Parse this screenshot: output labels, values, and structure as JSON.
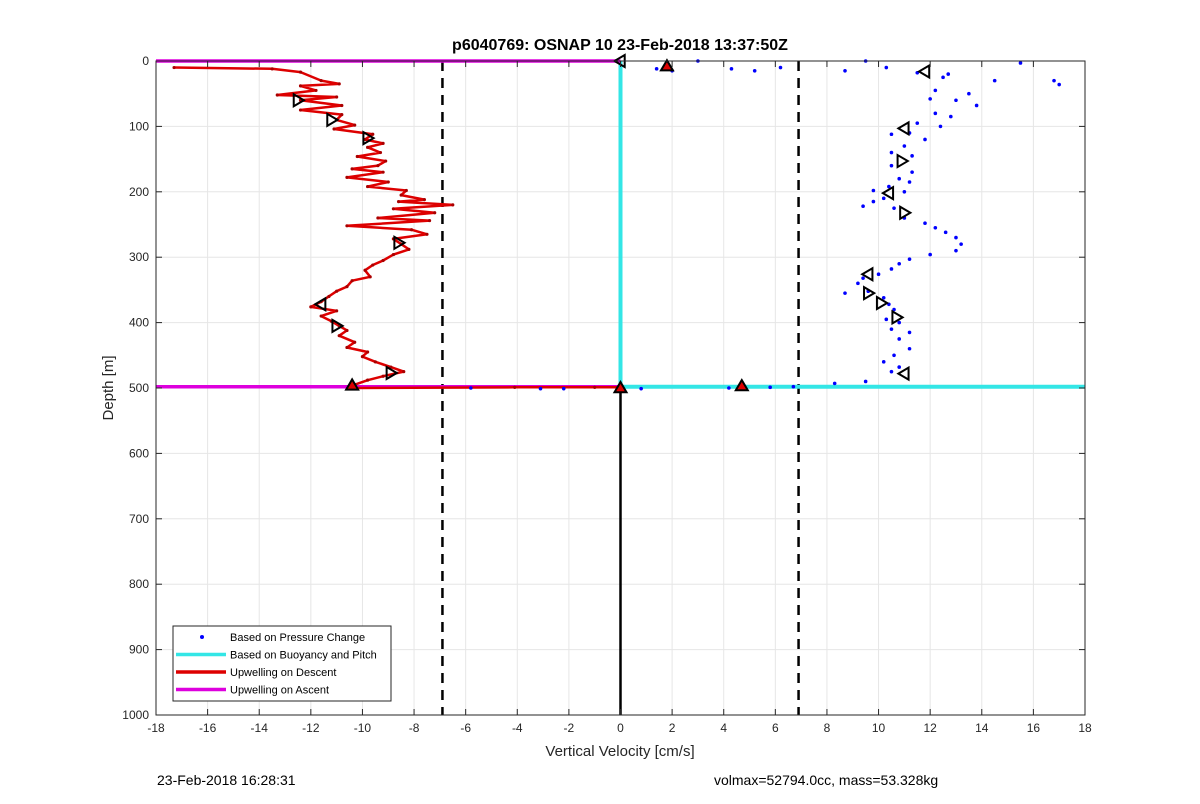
{
  "chart_data": {
    "type": "scatter",
    "title": "p6040769: OSNAP 10 23-Feb-2018 13:37:50Z",
    "xlabel": "Vertical Velocity [cm/s]",
    "ylabel": "Depth [m]",
    "xlim": [
      -18,
      18
    ],
    "ylim": [
      0,
      1000
    ],
    "y_reversed": true,
    "grid": true,
    "xticks": [
      -18,
      -16,
      -14,
      -12,
      -10,
      -8,
      -6,
      -4,
      -2,
      0,
      2,
      4,
      6,
      8,
      10,
      12,
      14,
      16,
      18
    ],
    "yticks": [
      0,
      100,
      200,
      300,
      400,
      500,
      600,
      700,
      800,
      900,
      1000
    ],
    "legend": {
      "position": "bottom-left",
      "entries": [
        {
          "label": "Based on Pressure Change",
          "color": "#0000ff",
          "style": "dot"
        },
        {
          "label": "Based on Buoyancy and Pitch",
          "color": "#33e6e6",
          "style": "line"
        },
        {
          "label": "Upwelling on Descent",
          "color": "#dd0000",
          "style": "line"
        },
        {
          "label": "Upwelling on Ascent",
          "color": "#dd00dd",
          "style": "line"
        }
      ]
    },
    "thresholds": {
      "dashed_x": [
        -6.9,
        6.9
      ]
    },
    "series": [
      {
        "name": "Upwelling on Descent",
        "color": "#dd0000",
        "points": [
          [
            -17.3,
            10
          ],
          [
            -13.5,
            12
          ],
          [
            -12.4,
            17
          ],
          [
            -11.6,
            30
          ],
          [
            -10.9,
            35
          ],
          [
            -12.4,
            38
          ],
          [
            -11.8,
            45
          ],
          [
            -13.3,
            52
          ],
          [
            -11,
            55
          ],
          [
            -12.4,
            60
          ],
          [
            -10.8,
            68
          ],
          [
            -12.4,
            75
          ],
          [
            -10.8,
            82
          ],
          [
            -11,
            90
          ],
          [
            -10.3,
            98
          ],
          [
            -11.1,
            104
          ],
          [
            -9.6,
            112
          ],
          [
            -9.9,
            120
          ],
          [
            -9.2,
            126
          ],
          [
            -9.8,
            132
          ],
          [
            -9.3,
            140
          ],
          [
            -10.2,
            146
          ],
          [
            -9.1,
            153
          ],
          [
            -9.4,
            160
          ],
          [
            -10.4,
            165
          ],
          [
            -9.2,
            170
          ],
          [
            -10.6,
            178
          ],
          [
            -9,
            185
          ],
          [
            -9.8,
            192
          ],
          [
            -8.3,
            198
          ],
          [
            -8.5,
            205
          ],
          [
            -7.6,
            212
          ],
          [
            -8.6,
            215
          ],
          [
            -6.5,
            220
          ],
          [
            -8.8,
            226
          ],
          [
            -7.2,
            232
          ],
          [
            -9.4,
            240
          ],
          [
            -7.4,
            244
          ],
          [
            -10.6,
            252
          ],
          [
            -8.1,
            258
          ],
          [
            -7.5,
            265
          ],
          [
            -8.8,
            272
          ],
          [
            -8.5,
            280
          ],
          [
            -8.2,
            288
          ],
          [
            -8.8,
            296
          ],
          [
            -9.2,
            305
          ],
          [
            -9.6,
            312
          ],
          [
            -9.9,
            320
          ],
          [
            -9.7,
            330
          ],
          [
            -10.4,
            336
          ],
          [
            -10.6,
            345
          ],
          [
            -11,
            352
          ],
          [
            -11.3,
            360
          ],
          [
            -11.6,
            368
          ],
          [
            -12,
            376
          ],
          [
            -11,
            382
          ],
          [
            -11.6,
            390
          ],
          [
            -11.2,
            398
          ],
          [
            -10.9,
            405
          ],
          [
            -10.6,
            412
          ],
          [
            -10.9,
            420
          ],
          [
            -10.3,
            430
          ],
          [
            -10.6,
            438
          ],
          [
            -9.8,
            445
          ],
          [
            -10,
            452
          ],
          [
            -9.5,
            460
          ],
          [
            -8.9,
            468
          ],
          [
            -8.4,
            475
          ],
          [
            -9.2,
            482
          ],
          [
            -9.8,
            488
          ],
          [
            -10.3,
            495
          ],
          [
            -10.3,
            500
          ],
          [
            -4.1,
            499
          ],
          [
            -1,
            499
          ],
          [
            0,
            499
          ]
        ],
        "markers": [
          [
            -12.5,
            60,
            "right"
          ],
          [
            -11.2,
            90,
            "right"
          ],
          [
            -9.8,
            118,
            "right"
          ],
          [
            -8.6,
            278,
            "right"
          ],
          [
            -11.6,
            372,
            "left"
          ],
          [
            -11,
            405,
            "right"
          ],
          [
            -8.9,
            477,
            "right"
          ],
          [
            -10.4,
            496,
            "up"
          ]
        ]
      },
      {
        "name": "Upwelling on Ascent",
        "color": "#dd00dd",
        "points": [
          [
            -18,
            0
          ],
          [
            0,
            0
          ],
          [
            null,
            null
          ],
          [
            -18,
            498
          ],
          [
            0,
            498
          ]
        ]
      },
      {
        "name": "Based on Buoyancy and Pitch",
        "color": "#33e6e6",
        "points": [
          [
            0,
            0
          ],
          [
            0,
            498
          ],
          [
            18,
            498
          ]
        ],
        "markers": [
          [
            0,
            0,
            "left"
          ],
          [
            0,
            500,
            "up"
          ],
          [
            4.7,
            497,
            "up"
          ],
          [
            1.8,
            8,
            "up"
          ]
        ]
      },
      {
        "name": "Based on Pressure Change",
        "color": "#0000ff",
        "points": [
          [
            1.4,
            12
          ],
          [
            2,
            15
          ],
          [
            3,
            0
          ],
          [
            4.3,
            12
          ],
          [
            5.2,
            15
          ],
          [
            6.2,
            10
          ],
          [
            8.7,
            15
          ],
          [
            9.5,
            0
          ],
          [
            10.3,
            10
          ],
          [
            11.5,
            18
          ],
          [
            12.5,
            25
          ],
          [
            12.7,
            20
          ],
          [
            15.5,
            3
          ],
          [
            16.8,
            30
          ],
          [
            17,
            36
          ],
          [
            14.5,
            30
          ],
          [
            12.2,
            45
          ],
          [
            13.5,
            50
          ],
          [
            12,
            58
          ],
          [
            13,
            60
          ],
          [
            13.8,
            68
          ],
          [
            12.2,
            80
          ],
          [
            12.8,
            85
          ],
          [
            11.5,
            95
          ],
          [
            12.4,
            100
          ],
          [
            11.2,
            110
          ],
          [
            10.5,
            112
          ],
          [
            11.8,
            120
          ],
          [
            11,
            130
          ],
          [
            10.5,
            140
          ],
          [
            11.3,
            145
          ],
          [
            10.5,
            160
          ],
          [
            11.3,
            170
          ],
          [
            10.8,
            180
          ],
          [
            11.2,
            185
          ],
          [
            10.4,
            192
          ],
          [
            9.8,
            198
          ],
          [
            11,
            200
          ],
          [
            10.2,
            210
          ],
          [
            9.8,
            215
          ],
          [
            9.4,
            222
          ],
          [
            10.6,
            225
          ],
          [
            11,
            240
          ],
          [
            11.8,
            248
          ],
          [
            12.2,
            255
          ],
          [
            12.6,
            262
          ],
          [
            13,
            270
          ],
          [
            13.2,
            280
          ],
          [
            13,
            290
          ],
          [
            12,
            296
          ],
          [
            11.2,
            303
          ],
          [
            10.8,
            310
          ],
          [
            10.5,
            318
          ],
          [
            10,
            326
          ],
          [
            9.4,
            332
          ],
          [
            9.2,
            340
          ],
          [
            8.7,
            355
          ],
          [
            9.6,
            352
          ],
          [
            10.2,
            362
          ],
          [
            10.4,
            372
          ],
          [
            10.6,
            380
          ],
          [
            10.3,
            395
          ],
          [
            10.8,
            400
          ],
          [
            10.5,
            410
          ],
          [
            11.2,
            415
          ],
          [
            10.8,
            425
          ],
          [
            11.2,
            440
          ],
          [
            10.6,
            450
          ],
          [
            10.2,
            460
          ],
          [
            10.8,
            468
          ],
          [
            10.5,
            475
          ],
          [
            8.3,
            493
          ],
          [
            9.5,
            490
          ],
          [
            5.8,
            499
          ],
          [
            4.2,
            500
          ],
          [
            6.7,
            498
          ],
          [
            0.8,
            501
          ],
          [
            -2.2,
            501
          ],
          [
            -3.1,
            501
          ],
          [
            -5.8,
            500
          ]
        ],
        "markers": [
          [
            11.8,
            16,
            "left"
          ],
          [
            11,
            103,
            "left"
          ],
          [
            10.9,
            153,
            "right"
          ],
          [
            10.4,
            202,
            "left"
          ],
          [
            11,
            232,
            "right"
          ],
          [
            9.6,
            326,
            "left"
          ],
          [
            9.6,
            355,
            "right"
          ],
          [
            10.1,
            370,
            "right"
          ],
          [
            10.7,
            392,
            "right"
          ],
          [
            11,
            478,
            "left"
          ]
        ]
      }
    ]
  },
  "footer": {
    "left": "23-Feb-2018 16:28:31",
    "right": "volmax=52794.0cc, mass=53.328kg"
  }
}
